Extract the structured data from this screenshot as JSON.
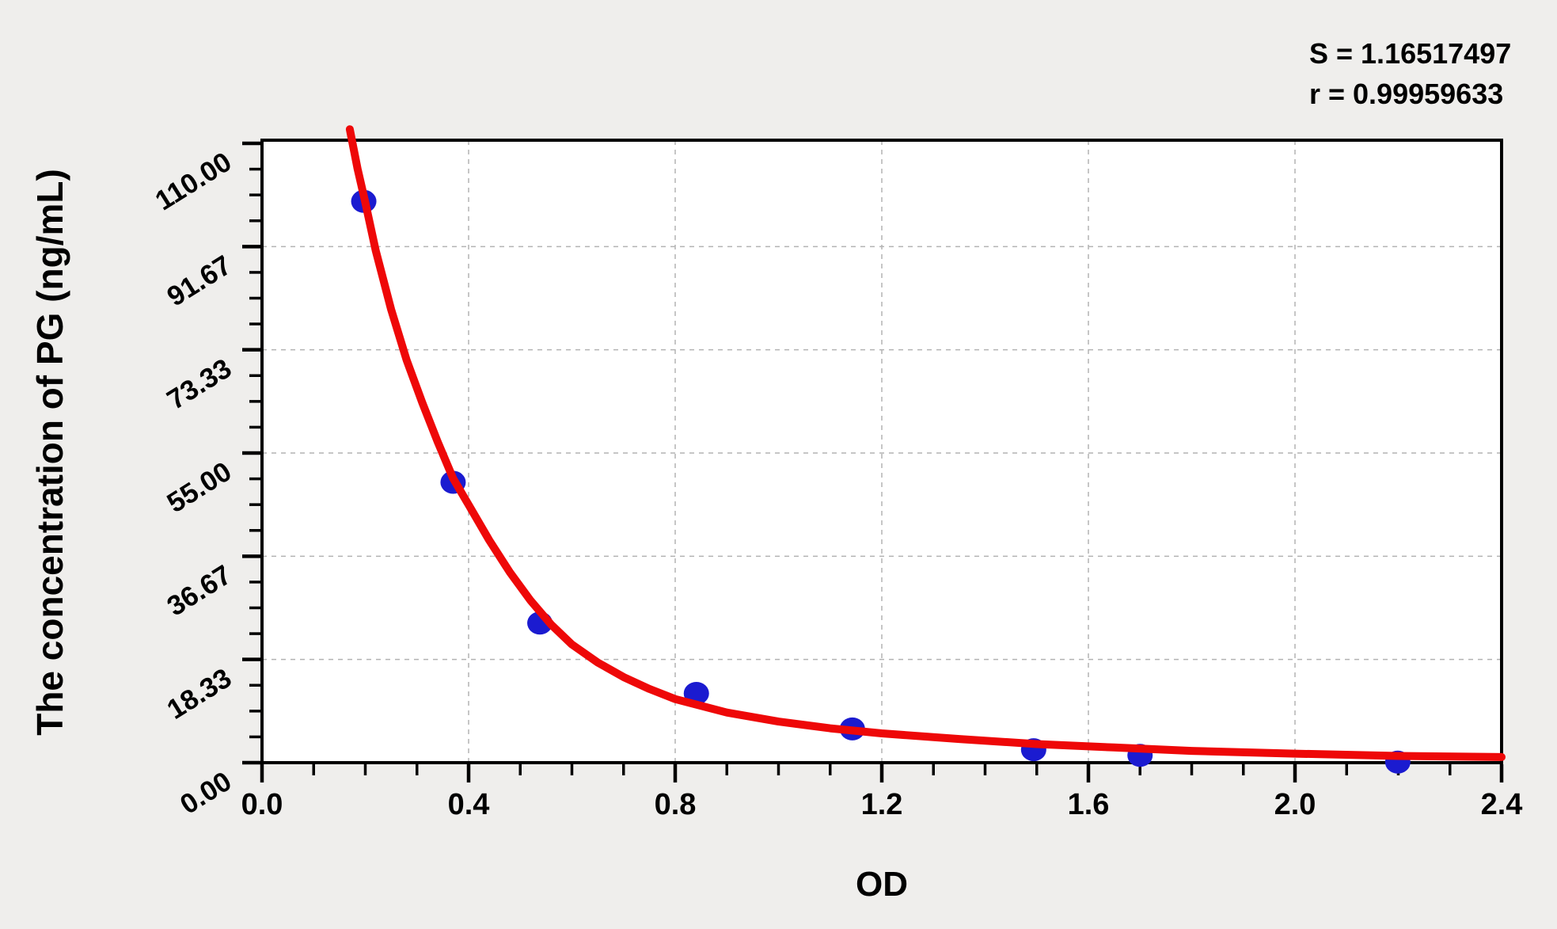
{
  "figure": {
    "background": "#efeeec",
    "plot_background": "#ffffff",
    "frame_color": "#000000",
    "grid_color": "#b3b3b3"
  },
  "stats": {
    "s_line": "S = 1.16517497",
    "r_line": "r = 0.99959633",
    "s_value": "1.16517497",
    "r_value": "0.99959633"
  },
  "chart_data": {
    "type": "scatter",
    "title": "",
    "xlabel": "OD",
    "ylabel": "The concentration of PG (ng/mL)",
    "xlim": [
      0,
      2.4
    ],
    "ylim": [
      0,
      110.56
    ],
    "grid": true,
    "x_ticks": {
      "values": [
        0,
        0.4,
        0.8,
        1.2,
        1.6,
        2.0,
        2.4
      ],
      "labels": [
        "0.0",
        "0.4",
        "0.8",
        "1.2",
        "1.6",
        "2.0",
        "2.4"
      ],
      "minor_step": 0.1
    },
    "y_ticks": {
      "values": [
        0,
        18.333,
        36.667,
        55,
        73.333,
        91.667,
        110
      ],
      "labels": [
        "0.00",
        "18.33",
        "36.67",
        "55.00",
        "73.33",
        "91.67",
        "110.00"
      ],
      "minor_divisions": 4
    },
    "series": [
      {
        "name": "standard-points",
        "type": "scatter",
        "color": "#1b1bd0",
        "points": [
          [
            0.197,
            99.7
          ],
          [
            0.37,
            49.8
          ],
          [
            0.538,
            24.8
          ],
          [
            0.841,
            12.3
          ],
          [
            1.143,
            6.0
          ],
          [
            1.494,
            2.3
          ],
          [
            1.7,
            1.3
          ],
          [
            2.199,
            0.1
          ]
        ]
      },
      {
        "name": "fitted-curve",
        "type": "line",
        "color": "#ee0808",
        "points": [
          [
            0.17,
            112.5
          ],
          [
            0.185,
            105.5
          ],
          [
            0.2,
            99.5
          ],
          [
            0.22,
            91.0
          ],
          [
            0.25,
            80.5
          ],
          [
            0.28,
            71.5
          ],
          [
            0.31,
            64.0
          ],
          [
            0.34,
            57.0
          ],
          [
            0.37,
            50.5
          ],
          [
            0.4,
            45.8
          ],
          [
            0.44,
            39.5
          ],
          [
            0.48,
            33.8
          ],
          [
            0.52,
            28.8
          ],
          [
            0.56,
            24.5
          ],
          [
            0.6,
            21.0
          ],
          [
            0.65,
            17.8
          ],
          [
            0.7,
            15.2
          ],
          [
            0.75,
            13.1
          ],
          [
            0.8,
            11.3
          ],
          [
            0.9,
            8.9
          ],
          [
            1.0,
            7.3
          ],
          [
            1.1,
            6.1
          ],
          [
            1.2,
            5.2
          ],
          [
            1.35,
            4.2
          ],
          [
            1.5,
            3.3
          ],
          [
            1.65,
            2.7
          ],
          [
            1.8,
            2.1
          ],
          [
            2.0,
            1.6
          ],
          [
            2.2,
            1.2
          ],
          [
            2.4,
            1.0
          ]
        ]
      }
    ]
  }
}
